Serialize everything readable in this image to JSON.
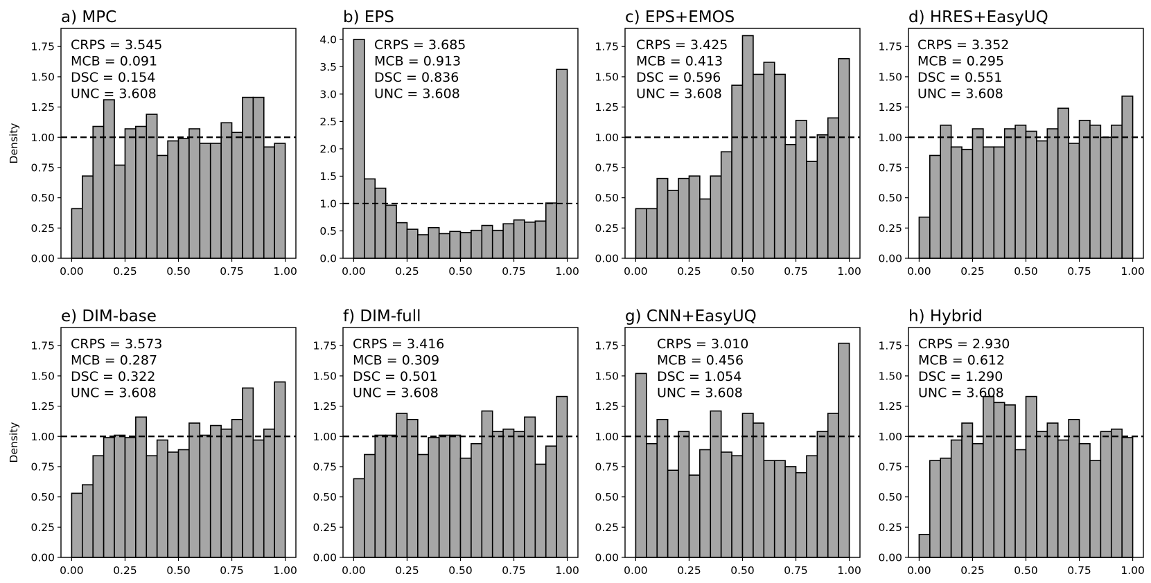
{
  "chart_data": [
    {
      "type": "bar",
      "title": "a) MPC",
      "ylabel": "Density",
      "ylim": [
        0,
        1.9
      ],
      "yticks": [
        "0.00",
        "0.25",
        "0.50",
        "0.75",
        "1.00",
        "1.25",
        "1.50",
        "1.75"
      ],
      "xticks": [
        "0.00",
        "0.25",
        "0.50",
        "0.75",
        "1.00"
      ],
      "reference_line": 1.0,
      "stats": [
        "CRPS = 3.545",
        "MCB = 0.091",
        "DSC = 0.154",
        "UNC = 3.608"
      ],
      "values": [
        0.41,
        0.68,
        1.09,
        1.31,
        0.77,
        1.07,
        1.09,
        1.19,
        0.85,
        0.97,
        0.99,
        1.07,
        0.95,
        0.95,
        1.12,
        1.04,
        1.33,
        1.33,
        0.92,
        0.95
      ]
    },
    {
      "type": "bar",
      "title": "b) EPS",
      "ylabel": "",
      "ylim": [
        0,
        4.2
      ],
      "yticks": [
        "0.0",
        "0.5",
        "1.0",
        "1.5",
        "2.0",
        "2.5",
        "3.0",
        "3.5",
        "4.0"
      ],
      "xticks": [
        "0.00",
        "0.25",
        "0.50",
        "0.75",
        "1.00"
      ],
      "reference_line": 1.0,
      "stats": [
        "CRPS = 3.685",
        "MCB = 0.913",
        "DSC = 0.836",
        "UNC = 3.608"
      ],
      "values": [
        4.0,
        1.45,
        1.28,
        0.97,
        0.65,
        0.53,
        0.43,
        0.56,
        0.45,
        0.49,
        0.47,
        0.51,
        0.6,
        0.51,
        0.63,
        0.7,
        0.66,
        0.68,
        1.01,
        3.45
      ]
    },
    {
      "type": "bar",
      "title": "c) EPS+EMOS",
      "ylabel": "",
      "ylim": [
        0,
        1.9
      ],
      "yticks": [
        "0.00",
        "0.25",
        "0.50",
        "0.75",
        "1.00",
        "1.25",
        "1.50",
        "1.75"
      ],
      "xticks": [
        "0.00",
        "0.25",
        "0.50",
        "0.75",
        "1.00"
      ],
      "reference_line": 1.0,
      "stats": [
        "CRPS = 3.425",
        "MCB = 0.413",
        "DSC = 0.596",
        "UNC = 3.608"
      ],
      "values": [
        0.41,
        0.41,
        0.66,
        0.56,
        0.66,
        0.68,
        0.49,
        0.68,
        0.88,
        1.43,
        1.84,
        1.52,
        1.62,
        1.52,
        0.94,
        1.14,
        0.8,
        1.02,
        1.16,
        1.65
      ]
    },
    {
      "type": "bar",
      "title": "d) HRES+EasyUQ",
      "ylabel": "",
      "ylim": [
        0,
        1.9
      ],
      "yticks": [
        "0.00",
        "0.25",
        "0.50",
        "0.75",
        "1.00",
        "1.25",
        "1.50",
        "1.75"
      ],
      "xticks": [
        "0.00",
        "0.25",
        "0.50",
        "0.75",
        "1.00"
      ],
      "reference_line": 1.0,
      "stats": [
        "CRPS = 3.352",
        "MCB = 0.295",
        "DSC = 0.551",
        "UNC = 3.608"
      ],
      "values": [
        0.34,
        0.85,
        1.1,
        0.92,
        0.9,
        1.07,
        0.92,
        0.92,
        1.07,
        1.1,
        1.05,
        0.97,
        1.07,
        1.24,
        0.95,
        1.14,
        1.1,
        1.0,
        1.1,
        1.34
      ]
    },
    {
      "type": "bar",
      "title": "e) DIM-base",
      "ylabel": "Density",
      "ylim": [
        0,
        1.9
      ],
      "yticks": [
        "0.00",
        "0.25",
        "0.50",
        "0.75",
        "1.00",
        "1.25",
        "1.50",
        "1.75"
      ],
      "xticks": [
        "0.00",
        "0.25",
        "0.50",
        "0.75",
        "1.00"
      ],
      "reference_line": 1.0,
      "stats": [
        "CRPS = 3.573",
        "MCB = 0.287",
        "DSC = 0.322",
        "UNC = 3.608"
      ],
      "values": [
        0.53,
        0.6,
        0.84,
        0.99,
        1.01,
        0.99,
        1.16,
        0.84,
        0.97,
        0.87,
        0.89,
        1.11,
        1.01,
        1.09,
        1.06,
        1.14,
        1.4,
        0.97,
        1.06,
        1.45
      ]
    },
    {
      "type": "bar",
      "title": "f) DIM-full",
      "ylabel": "",
      "ylim": [
        0,
        1.9
      ],
      "yticks": [
        "0.00",
        "0.25",
        "0.50",
        "0.75",
        "1.00",
        "1.25",
        "1.50",
        "1.75"
      ],
      "xticks": [
        "0.00",
        "0.25",
        "0.50",
        "0.75",
        "1.00"
      ],
      "reference_line": 1.0,
      "stats": [
        "CRPS = 3.416",
        "MCB = 0.309",
        "DSC = 0.501",
        "UNC = 3.608"
      ],
      "values": [
        0.65,
        0.85,
        1.01,
        1.01,
        1.19,
        1.14,
        0.85,
        0.99,
        1.01,
        1.01,
        0.82,
        0.94,
        1.21,
        1.04,
        1.06,
        1.04,
        1.16,
        0.77,
        0.92,
        1.33
      ]
    },
    {
      "type": "bar",
      "title": "g) CNN+EasyUQ",
      "ylabel": "",
      "ylim": [
        0,
        1.9
      ],
      "yticks": [
        "0.00",
        "0.25",
        "0.50",
        "0.75",
        "1.00",
        "1.25",
        "1.50",
        "1.75"
      ],
      "xticks": [
        "0.00",
        "0.25",
        "0.50",
        "0.75",
        "1.00"
      ],
      "reference_line": 1.0,
      "stats": [
        "CRPS = 3.010",
        "MCB = 0.456",
        "DSC = 1.054",
        "UNC = 3.608"
      ],
      "values": [
        1.52,
        0.94,
        1.14,
        0.72,
        1.04,
        0.68,
        0.89,
        1.21,
        0.87,
        0.84,
        1.19,
        1.11,
        0.8,
        0.8,
        0.75,
        0.7,
        0.84,
        1.04,
        1.19,
        1.77
      ]
    },
    {
      "type": "bar",
      "title": "h) Hybrid",
      "ylabel": "",
      "ylim": [
        0,
        1.9
      ],
      "yticks": [
        "0.00",
        "0.25",
        "0.50",
        "0.75",
        "1.00",
        "1.25",
        "1.50",
        "1.75"
      ],
      "xticks": [
        "0.00",
        "0.25",
        "0.50",
        "0.75",
        "1.00"
      ],
      "reference_line": 1.0,
      "stats": [
        "CRPS = 2.930",
        "MCB = 0.612",
        "DSC = 1.290",
        "UNC = 3.608"
      ],
      "values": [
        0.19,
        0.8,
        0.82,
        0.97,
        1.11,
        0.94,
        1.33,
        1.28,
        1.26,
        0.89,
        1.33,
        1.04,
        1.11,
        0.97,
        1.14,
        0.94,
        0.8,
        1.04,
        1.06,
        0.99
      ]
    }
  ]
}
